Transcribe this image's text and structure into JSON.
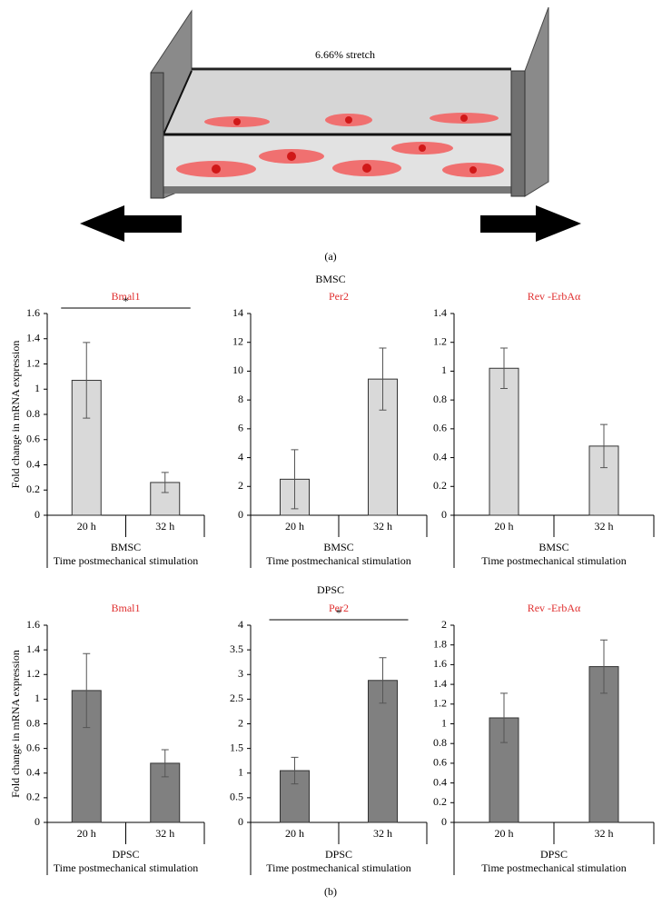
{
  "diagram": {
    "label": "6.66% stretch",
    "caption": "(a)"
  },
  "group_titles": [
    "BMSC",
    "DPSC"
  ],
  "caption": "(b)",
  "chart_data": [
    {
      "type": "bar",
      "title": "Bmal1",
      "ylabel": "Fold change in mRNA expression",
      "categories": [
        "20 h",
        "32 h"
      ],
      "group_label": "BMSC",
      "xlabel": "Time postmechanical stimulation",
      "values": [
        1.07,
        0.26
      ],
      "errors": [
        0.3,
        0.08
      ],
      "color": "#d9d9d9",
      "ylim": [
        0,
        1.6
      ],
      "yticks": [
        0,
        0.2,
        0.4,
        0.6,
        0.8,
        1,
        1.2,
        1.4,
        1.6
      ],
      "significance": "*"
    },
    {
      "type": "bar",
      "title": "Per2",
      "categories": [
        "20 h",
        "32 h"
      ],
      "group_label": "BMSC",
      "xlabel": "Time postmechanical stimulation",
      "values": [
        2.5,
        9.45
      ],
      "errors": [
        2.05,
        2.15
      ],
      "color": "#d9d9d9",
      "ylim": [
        0,
        14
      ],
      "yticks": [
        0,
        2,
        4,
        6,
        8,
        10,
        12,
        14
      ]
    },
    {
      "type": "bar",
      "title": "Rev -ErbAα",
      "categories": [
        "20 h",
        "32 h"
      ],
      "group_label": "BMSC",
      "xlabel": "Time postmechanical stimulation",
      "values": [
        1.02,
        0.48
      ],
      "errors": [
        0.14,
        0.15
      ],
      "color": "#d9d9d9",
      "ylim": [
        0,
        1.4
      ],
      "yticks": [
        0,
        0.2,
        0.4,
        0.6,
        0.8,
        1,
        1.2,
        1.4
      ]
    },
    {
      "type": "bar",
      "title": "Bmal1",
      "ylabel": "Fold change in mRNA expression",
      "categories": [
        "20 h",
        "32 h"
      ],
      "group_label": "DPSC",
      "xlabel": "Time postmechanical stimulation",
      "values": [
        1.07,
        0.48
      ],
      "errors": [
        0.3,
        0.11
      ],
      "color": "#808080",
      "ylim": [
        0,
        1.6
      ],
      "yticks": [
        0,
        0.2,
        0.4,
        0.6,
        0.8,
        1,
        1.2,
        1.4,
        1.6
      ]
    },
    {
      "type": "bar",
      "title": "Per2",
      "categories": [
        "20 h",
        "32 h"
      ],
      "group_label": "DPSC",
      "xlabel": "Time postmechanical stimulation",
      "values": [
        1.05,
        2.88
      ],
      "errors": [
        0.27,
        0.46
      ],
      "color": "#808080",
      "ylim": [
        0,
        4
      ],
      "yticks": [
        0,
        0.5,
        1,
        1.5,
        2,
        2.5,
        3,
        3.5,
        4
      ],
      "significance": "*"
    },
    {
      "type": "bar",
      "title": "Rev -ErbAα",
      "categories": [
        "20 h",
        "32 h"
      ],
      "group_label": "DPSC",
      "xlabel": "Time postmechanical stimulation",
      "values": [
        1.06,
        1.58
      ],
      "errors": [
        0.25,
        0.27
      ],
      "color": "#808080",
      "ylim": [
        0,
        2
      ],
      "yticks": [
        0,
        0.2,
        0.4,
        0.6,
        0.8,
        1,
        1.2,
        1.4,
        1.6,
        1.8,
        2
      ]
    }
  ]
}
